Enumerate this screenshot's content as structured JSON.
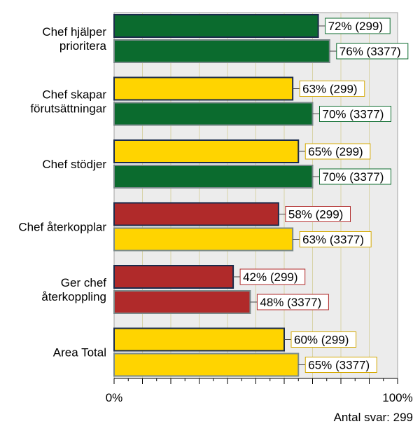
{
  "chart_data": {
    "type": "bar",
    "orientation": "horizontal",
    "xlim": [
      0,
      100
    ],
    "grid": true,
    "tick_labels": [
      "0%",
      "100%"
    ],
    "categories": [
      "Chef hjälper\nprioritera",
      "Chef skapar\nförutsättningar",
      "Chef stödjer",
      "Chef återkopplar",
      "Ger chef\nåterkoppling",
      "Area Total"
    ],
    "series": [
      {
        "values": [
          72,
          63,
          65,
          58,
          42,
          60
        ],
        "labels": [
          "72% (299)",
          "63% (299)",
          "65% (299)",
          "58% (299)",
          "42% (299)",
          "60% (299)"
        ]
      },
      {
        "values": [
          76,
          70,
          70,
          63,
          48,
          65
        ],
        "labels": [
          "76% (3377)",
          "70% (3377)",
          "70% (3377)",
          "63% (3377)",
          "48% (3377)",
          "65% (3377)"
        ]
      }
    ],
    "bar_colors": [
      [
        "#0b6b2e",
        "#0b6b2e"
      ],
      [
        "#ffd400",
        "#0b6b2e"
      ],
      [
        "#ffd400",
        "#0b6b2e"
      ],
      [
        "#b02a2a",
        "#ffd400"
      ],
      [
        "#b02a2a",
        "#b02a2a"
      ],
      [
        "#ffd400",
        "#ffd400"
      ]
    ],
    "footnote": "Antal svar: 299"
  },
  "colors": {
    "green": "#0b6b2e",
    "yellow": "#ffd400",
    "red": "#b02a2a",
    "plot_background": "#ececec"
  }
}
